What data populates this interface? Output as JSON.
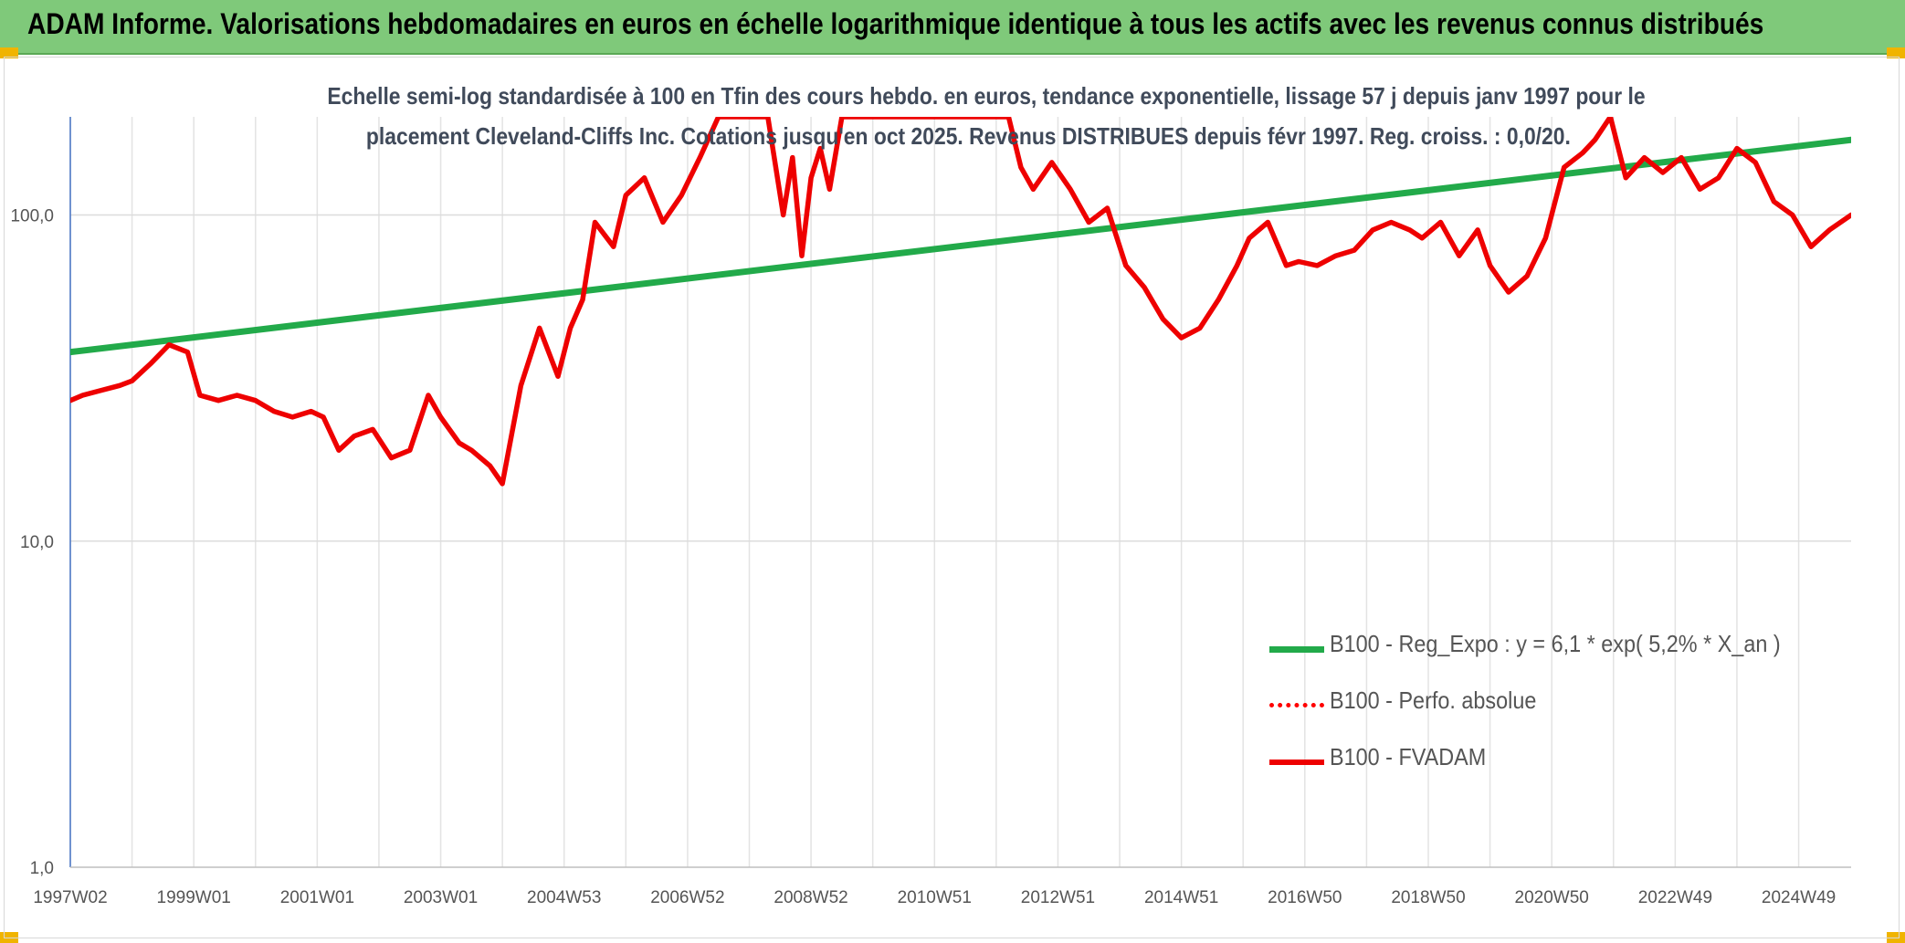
{
  "header": {
    "title": "ADAM Informe. Valorisations hebdomadaires en euros en échelle logarithmique identique à tous les actifs avec les revenus connus distribués"
  },
  "chart_data": {
    "type": "line",
    "subtitle_line1": "Echelle semi-log standardisée à 100 en Tfin des cours hebdo. en euros, tendance exponentielle, lissage 57 j depuis janv 1997 pour le",
    "subtitle_line2": "placement Cleveland-Cliffs Inc. Cotations jusqu'en oct 2025. Revenus DISTRIBUES depuis févr 1997. Reg. croiss. : 0,0/20.",
    "y_scale": "log",
    "ylim": [
      1,
      200
    ],
    "xlim": [
      1997.0,
      2025.85
    ],
    "y_ticks": [
      {
        "value": 1,
        "label": "1,0"
      },
      {
        "value": 10,
        "label": "10,0"
      },
      {
        "value": 100,
        "label": "100,0"
      }
    ],
    "x_tick_labels": [
      {
        "year": 1997.0,
        "label": "1997W02"
      },
      {
        "year": 1999.0,
        "label": "1999W01"
      },
      {
        "year": 2001.0,
        "label": "2001W01"
      },
      {
        "year": 2003.0,
        "label": "2003W01"
      },
      {
        "year": 2005.0,
        "label": "2004W53"
      },
      {
        "year": 2007.0,
        "label": "2006W52"
      },
      {
        "year": 2009.0,
        "label": "2008W52"
      },
      {
        "year": 2011.0,
        "label": "2010W51"
      },
      {
        "year": 2013.0,
        "label": "2012W51"
      },
      {
        "year": 2015.0,
        "label": "2014W51"
      },
      {
        "year": 2017.0,
        "label": "2016W50"
      },
      {
        "year": 2019.0,
        "label": "2018W50"
      },
      {
        "year": 2021.0,
        "label": "2020W50"
      },
      {
        "year": 2023.0,
        "label": "2022W49"
      },
      {
        "year": 2025.0,
        "label": "2024W49"
      }
    ],
    "legend_position": "bottom-right",
    "grid": true,
    "series": [
      {
        "name": "B100 - Reg_Expo : y = 6,1 * exp( 5,2% *  X_an )",
        "color": "#22aa4a",
        "style": "solid",
        "x": [
          1997.0,
          2025.85
        ],
        "y": [
          38,
          170
        ]
      },
      {
        "name": "B100 - Perfo. absolue",
        "color": "#ff0000",
        "style": "dotted",
        "x": [],
        "y": []
      },
      {
        "name": "B100 - FVADAM",
        "color": "#ee0000",
        "style": "solid",
        "x": [
          1997.0,
          1997.2,
          1997.5,
          1997.8,
          1998.0,
          1998.3,
          1998.6,
          1998.9,
          1999.1,
          1999.4,
          1999.7,
          2000.0,
          2000.3,
          2000.6,
          2000.9,
          2001.1,
          2001.35,
          2001.6,
          2001.9,
          2002.2,
          2002.5,
          2002.8,
          2003.0,
          2003.3,
          2003.5,
          2003.8,
          2004.0,
          2004.3,
          2004.6,
          2004.9,
          2005.1,
          2005.3,
          2005.5,
          2005.8,
          2006.0,
          2006.3,
          2006.6,
          2006.9,
          2007.2,
          2007.5,
          2007.7,
          2008.0,
          2008.3,
          2008.55,
          2008.7,
          2008.85,
          2009.0,
          2009.15,
          2009.3,
          2009.5,
          2009.8,
          2012.2,
          2012.4,
          2012.6,
          2012.9,
          2013.2,
          2013.5,
          2013.8,
          2014.1,
          2014.4,
          2014.7,
          2015.0,
          2015.3,
          2015.6,
          2015.9,
          2016.1,
          2016.4,
          2016.7,
          2016.9,
          2017.2,
          2017.5,
          2017.8,
          2018.1,
          2018.4,
          2018.7,
          2018.9,
          2019.2,
          2019.5,
          2019.8,
          2020.0,
          2020.3,
          2020.6,
          2020.9,
          2021.2,
          2021.5,
          2021.7,
          2021.95,
          2022.2,
          2022.5,
          2022.8,
          2023.1,
          2023.4,
          2023.7,
          2024.0,
          2024.3,
          2024.6,
          2024.9,
          2025.2,
          2025.5,
          2025.85
        ],
        "y": [
          27,
          28,
          29,
          30,
          31,
          35,
          40,
          38,
          28,
          27,
          28,
          27,
          25,
          24,
          25,
          24,
          19,
          21,
          22,
          18,
          19,
          28,
          24,
          20,
          19,
          17,
          15,
          30,
          45,
          32,
          45,
          55,
          95,
          80,
          115,
          130,
          95,
          115,
          150,
          200,
          200,
          200,
          200,
          100,
          150,
          75,
          130,
          160,
          120,
          200,
          200,
          200,
          140,
          120,
          145,
          120,
          95,
          105,
          70,
          60,
          48,
          42,
          45,
          55,
          70,
          85,
          95,
          70,
          72,
          70,
          75,
          78,
          90,
          95,
          90,
          85,
          95,
          75,
          90,
          70,
          58,
          65,
          85,
          140,
          155,
          170,
          200,
          130,
          150,
          135,
          150,
          120,
          130,
          160,
          145,
          110,
          100,
          80,
          90,
          100
        ]
      }
    ]
  }
}
